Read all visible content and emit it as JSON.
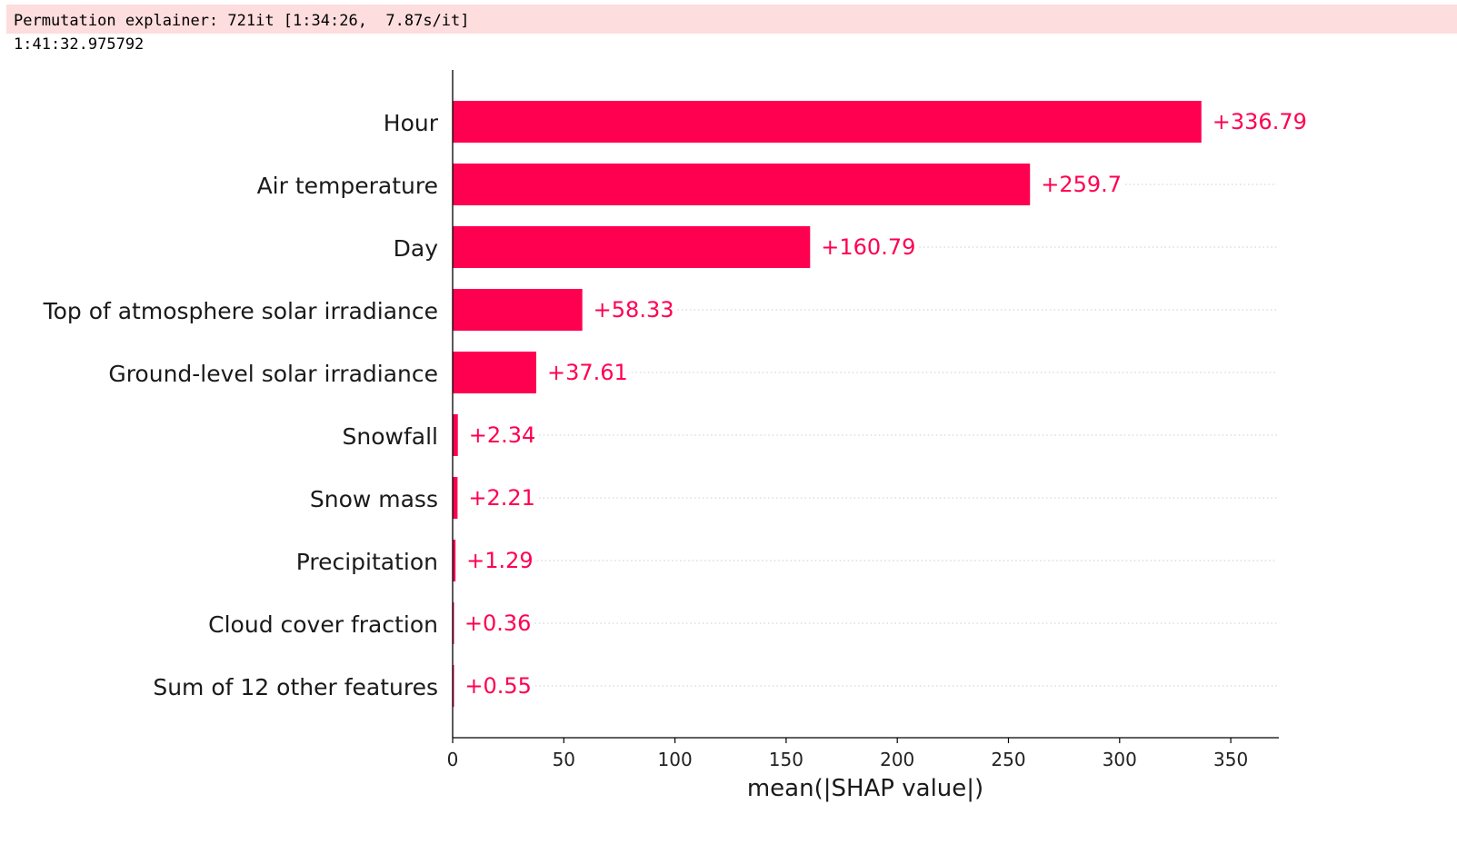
{
  "output": {
    "stderr_line": "Permutation explainer: 721it [1:34:26,  7.87s/it]",
    "stdout_line": "1:41:32.975792"
  },
  "colors": {
    "bar": "#ff0051",
    "stderr_background": "#fddddd",
    "gridline": "#cccccc",
    "axis": "#000000"
  },
  "chart_data": {
    "type": "bar",
    "orientation": "horizontal",
    "title": "",
    "xlabel": "mean(|SHAP value|)",
    "ylabel": "",
    "xlim": [
      0,
      372
    ],
    "xticks": [
      0,
      50,
      100,
      150,
      200,
      250,
      300,
      350
    ],
    "grid": "dotted horizontal lines per feature",
    "categories": [
      "Hour",
      "Air temperature",
      "Day",
      "Top of atmosphere solar irradiance",
      "Ground-level solar irradiance",
      "Snowfall",
      "Snow mass",
      "Precipitation",
      "Cloud cover fraction",
      "Sum of 12 other features"
    ],
    "values": [
      336.79,
      259.7,
      160.79,
      58.33,
      37.61,
      2.34,
      2.21,
      1.29,
      0.36,
      0.55
    ],
    "value_labels": [
      "+336.79",
      "+259.7",
      "+160.79",
      "+58.33",
      "+37.61",
      "+2.34",
      "+2.21",
      "+1.29",
      "+0.36",
      "+0.55"
    ]
  }
}
